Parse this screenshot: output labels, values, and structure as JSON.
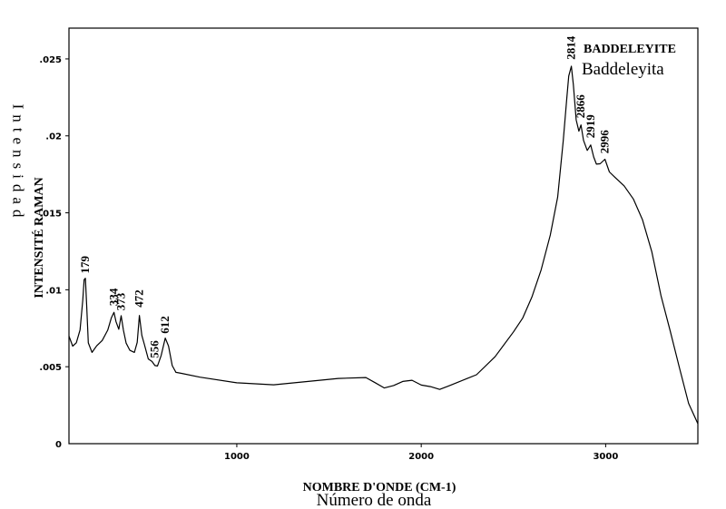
{
  "chart_data": {
    "type": "line",
    "title": "BADDELEYITE",
    "subtitle": "Baddeleyita",
    "xlabel": "NOMBRE D'ONDE (CM-1)",
    "xlabel_secondary": "Número de onda",
    "ylabel": "INTENSITÉ RAMAN",
    "ylabel_secondary": "Intensidad",
    "xlim": [
      90,
      3500
    ],
    "ylim": [
      0,
      0.027
    ],
    "x_ticks": [
      1000,
      2000,
      3000
    ],
    "y_ticks": [
      0.005,
      0.01,
      0.015,
      0.02,
      0.025
    ],
    "y_tick_labels": [
      ".005",
      ".01",
      ".015",
      ".02",
      ".025"
    ],
    "grid": false,
    "peak_labels": [
      {
        "x": 179,
        "label": "179"
      },
      {
        "x": 334,
        "label": "334"
      },
      {
        "x": 373,
        "label": "373"
      },
      {
        "x": 472,
        "label": "472"
      },
      {
        "x": 556,
        "label": "556"
      },
      {
        "x": 612,
        "label": "612"
      },
      {
        "x": 2814,
        "label": "2814"
      },
      {
        "x": 2866,
        "label": "2866"
      },
      {
        "x": 2919,
        "label": "2919"
      },
      {
        "x": 2996,
        "label": "2996"
      }
    ],
    "series": [
      {
        "color": "#000000",
        "x": [
          90,
          110,
          130,
          150,
          165,
          172,
          179,
          186,
          195,
          215,
          240,
          270,
          300,
          320,
          334,
          345,
          360,
          373,
          385,
          400,
          420,
          445,
          460,
          472,
          485,
          500,
          520,
          540,
          556,
          570,
          590,
          612,
          630,
          650,
          670,
          700,
          800,
          1000,
          1200,
          1400,
          1550,
          1700,
          1750,
          1800,
          1850,
          1900,
          1950,
          2000,
          2050,
          2100,
          2150,
          2200,
          2250,
          2300,
          2400,
          2500,
          2550,
          2600,
          2650,
          2700,
          2740,
          2770,
          2790,
          2800,
          2814,
          2825,
          2840,
          2855,
          2866,
          2880,
          2900,
          2919,
          2935,
          2950,
          2970,
          2996,
          3020,
          3050,
          3100,
          3150,
          3200,
          3250,
          3300,
          3350,
          3400,
          3450,
          3500
        ],
        "y": [
          0.0068,
          0.0064,
          0.0066,
          0.0075,
          0.0095,
          0.0106,
          0.0107,
          0.009,
          0.0065,
          0.0061,
          0.0062,
          0.0068,
          0.0075,
          0.0083,
          0.0086,
          0.0078,
          0.0074,
          0.0083,
          0.0074,
          0.0066,
          0.0062,
          0.0058,
          0.0066,
          0.0085,
          0.007,
          0.0064,
          0.0056,
          0.0054,
          0.0052,
          0.0051,
          0.0058,
          0.0068,
          0.0062,
          0.005,
          0.0046,
          0.0045,
          0.0043,
          0.0041,
          0.004,
          0.0041,
          0.0042,
          0.0043,
          0.004,
          0.0037,
          0.0039,
          0.0042,
          0.0043,
          0.004,
          0.0039,
          0.0037,
          0.0039,
          0.0041,
          0.0043,
          0.0045,
          0.0056,
          0.0072,
          0.0081,
          0.0095,
          0.0113,
          0.0136,
          0.016,
          0.0195,
          0.0225,
          0.024,
          0.0246,
          0.0232,
          0.021,
          0.0202,
          0.0208,
          0.0198,
          0.0192,
          0.0195,
          0.0188,
          0.0183,
          0.0182,
          0.0185,
          0.0177,
          0.0174,
          0.0168,
          0.0159,
          0.0145,
          0.0124,
          0.0095,
          0.0072,
          0.0048,
          0.0025,
          0.0012
        ]
      }
    ]
  }
}
